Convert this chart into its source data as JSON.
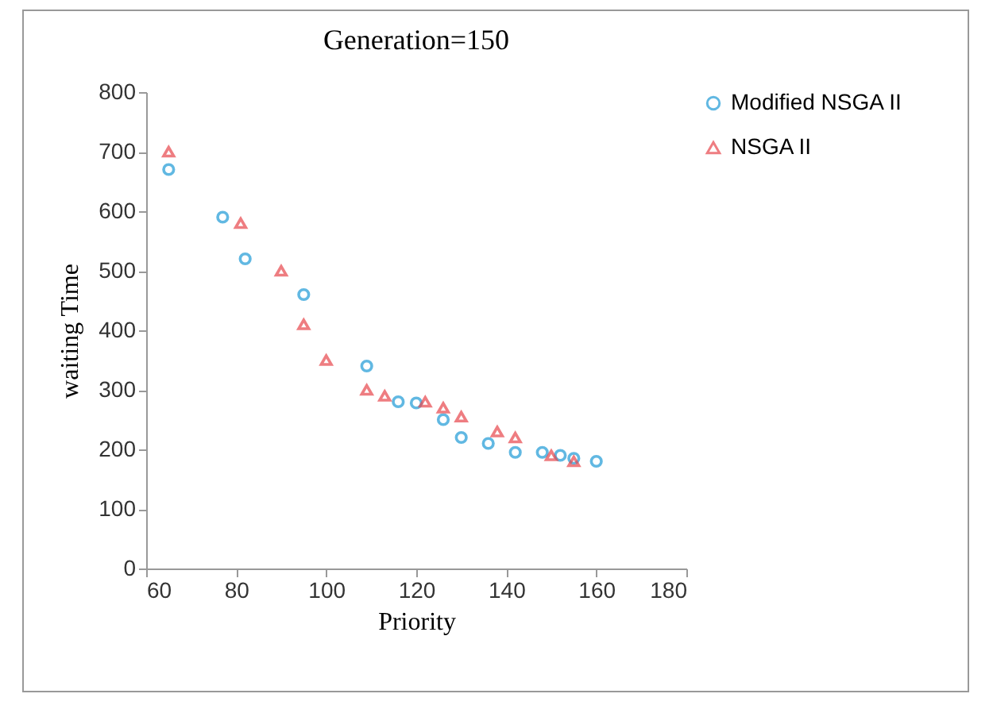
{
  "chart_data": {
    "type": "scatter",
    "title": "Generation=150",
    "xlabel": "Priority",
    "ylabel": "waiting Time",
    "legend": "right",
    "grid": false,
    "xlim": [
      60,
      180
    ],
    "xticks": [
      60,
      80,
      100,
      120,
      140,
      160,
      180
    ],
    "ylim": [
      0,
      800
    ],
    "yticks": [
      0,
      100,
      200,
      300,
      400,
      500,
      600,
      700,
      800
    ],
    "series": [
      {
        "name": "Modified NSGA II",
        "color": "#1f9bd7",
        "marker": "circle",
        "x": [
          65,
          77,
          82,
          95,
          109,
          116,
          120,
          126,
          130,
          136,
          142,
          148,
          152,
          155,
          160
        ],
        "values": [
          670,
          590,
          520,
          460,
          340,
          280,
          278,
          250,
          220,
          210,
          195,
          195,
          190,
          185,
          180
        ]
      },
      {
        "name": "NSGA II",
        "color": "#e8474c",
        "marker": "triangle",
        "x": [
          65,
          81,
          90,
          95,
          100,
          109,
          113,
          122,
          126,
          130,
          138,
          142,
          150,
          155
        ],
        "values": [
          700,
          580,
          500,
          410,
          350,
          300,
          290,
          280,
          270,
          255,
          230,
          220,
          190,
          180
        ]
      }
    ]
  }
}
